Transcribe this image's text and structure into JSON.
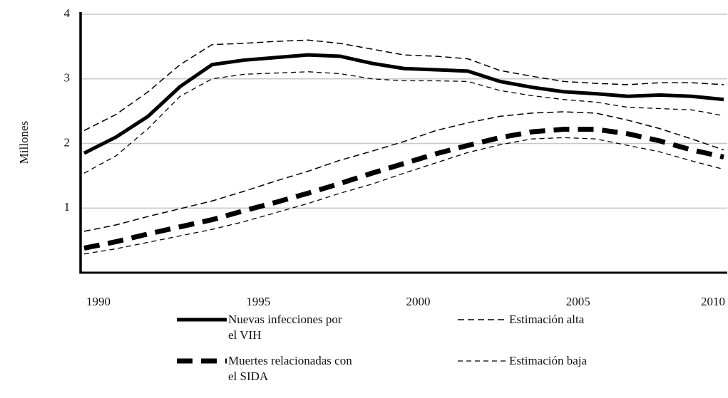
{
  "chart_data": {
    "type": "line",
    "ylabel": "Millones",
    "x": [
      1990,
      1991,
      1992,
      1993,
      1994,
      1995,
      1996,
      1997,
      1998,
      1999,
      2000,
      2001,
      2002,
      2003,
      2004,
      2005,
      2006,
      2007,
      2008,
      2009,
      2010
    ],
    "xlim": [
      1990,
      2010
    ],
    "xticks": [
      1990,
      1995,
      2000,
      2005,
      2010
    ],
    "ylim": [
      0,
      4
    ],
    "yticks": [
      1,
      2,
      3,
      4
    ],
    "grid": true,
    "band_names": {
      "high": "Estimación alta",
      "low": "Estimación baja"
    },
    "series": [
      {
        "name": "Nuevas infecciones por el VIH",
        "color": "#000000",
        "style": "solid",
        "values": [
          1.85,
          2.1,
          2.42,
          2.88,
          3.22,
          3.29,
          3.33,
          3.37,
          3.35,
          3.24,
          3.16,
          3.14,
          3.12,
          2.96,
          2.87,
          2.8,
          2.77,
          2.73,
          2.75,
          2.73,
          2.68
        ],
        "high": [
          2.2,
          2.45,
          2.8,
          3.22,
          3.53,
          3.55,
          3.58,
          3.6,
          3.55,
          3.46,
          3.37,
          3.35,
          3.31,
          3.13,
          3.04,
          2.96,
          2.93,
          2.91,
          2.94,
          2.94,
          2.91
        ],
        "low": [
          1.54,
          1.81,
          2.23,
          2.73,
          3.0,
          3.07,
          3.09,
          3.11,
          3.08,
          3.0,
          2.97,
          2.97,
          2.96,
          2.82,
          2.74,
          2.68,
          2.64,
          2.56,
          2.54,
          2.52,
          2.43
        ]
      },
      {
        "name": "Muertes relacionadas con el SIDA",
        "color": "#000000",
        "style": "dashed",
        "values": [
          0.38,
          0.48,
          0.6,
          0.71,
          0.82,
          0.96,
          1.09,
          1.23,
          1.38,
          1.54,
          1.69,
          1.84,
          1.97,
          2.09,
          2.18,
          2.22,
          2.22,
          2.15,
          2.04,
          1.9,
          1.79
        ],
        "high": [
          0.64,
          0.74,
          0.87,
          0.99,
          1.11,
          1.26,
          1.42,
          1.57,
          1.74,
          1.88,
          2.03,
          2.2,
          2.32,
          2.42,
          2.47,
          2.49,
          2.47,
          2.36,
          2.23,
          2.07,
          1.9
        ],
        "low": [
          0.29,
          0.37,
          0.47,
          0.57,
          0.67,
          0.79,
          0.93,
          1.07,
          1.23,
          1.37,
          1.54,
          1.7,
          1.86,
          1.98,
          2.07,
          2.09,
          2.07,
          1.97,
          1.87,
          1.73,
          1.6
        ]
      }
    ]
  }
}
